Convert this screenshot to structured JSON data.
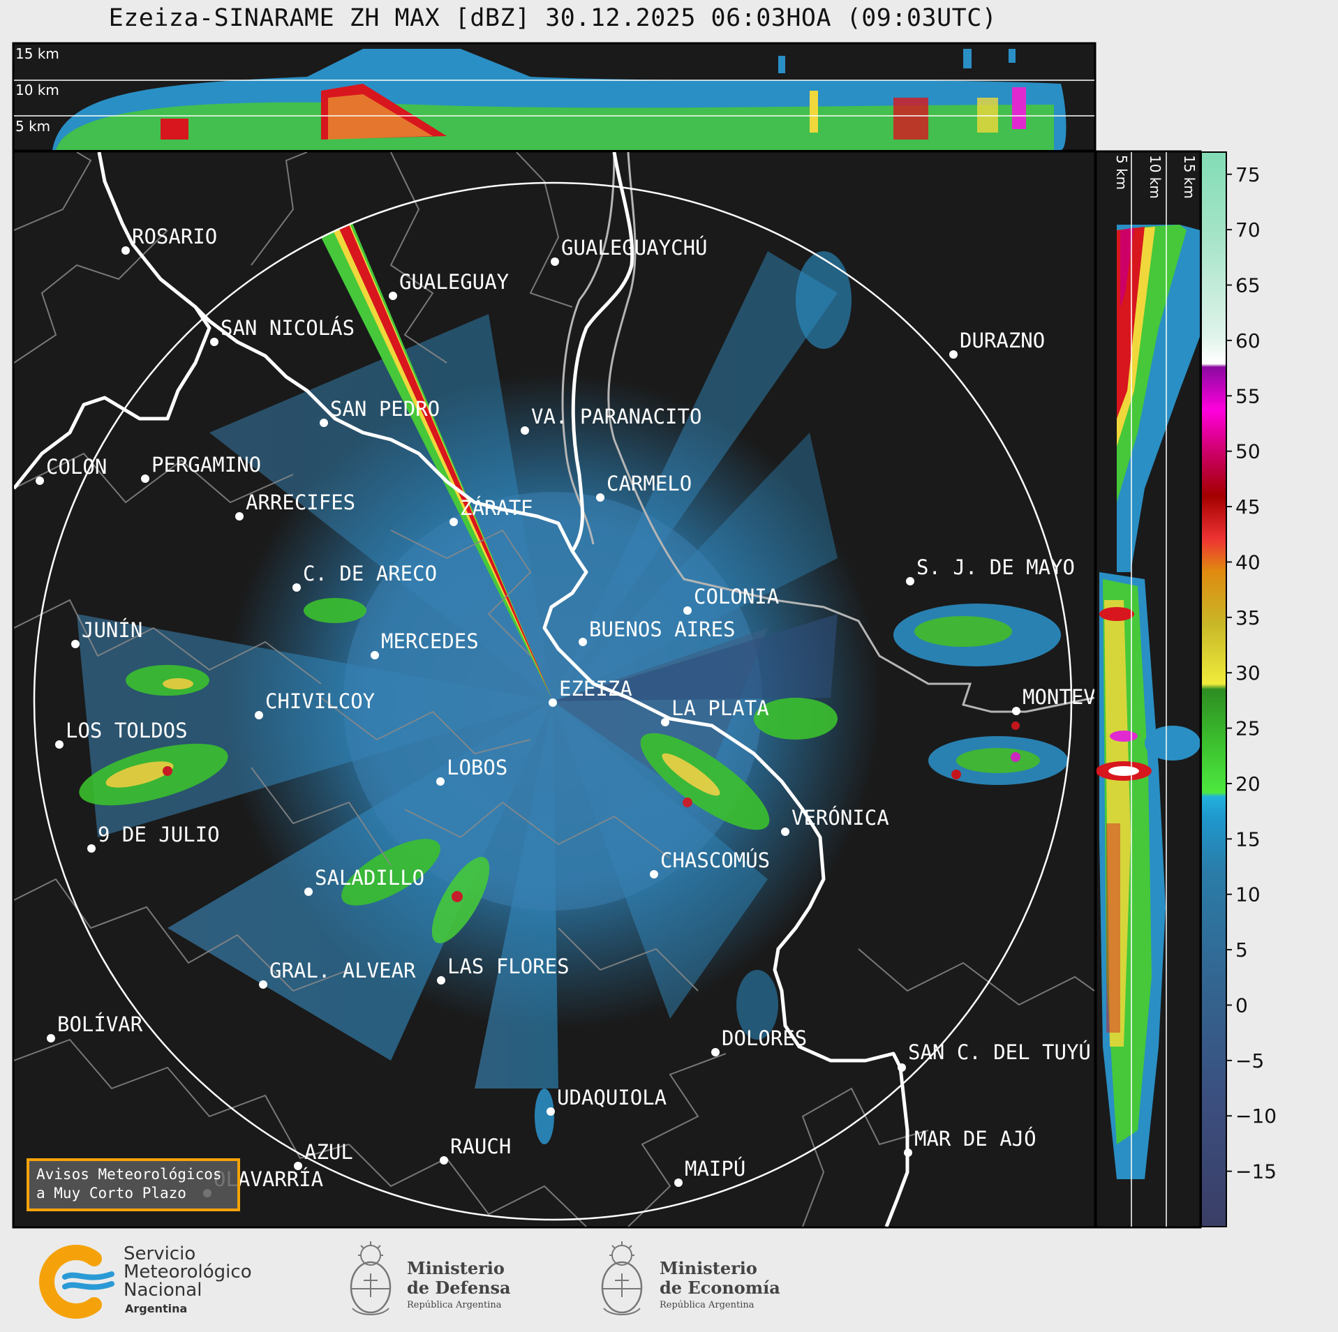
{
  "title": "Ezeiza-SINARAME ZH MAX [dBZ] 30.12.2025 06:03HOA (09:03UTC)",
  "top_panel": {
    "height_labels": [
      "15 km",
      "10 km",
      "5 km"
    ]
  },
  "side_panel": {
    "height_labels": [
      "5 km",
      "10 km",
      "15 km"
    ]
  },
  "colorbar": {
    "ticks": [
      "75",
      "70",
      "65",
      "60",
      "55",
      "50",
      "45",
      "40",
      "35",
      "30",
      "25",
      "20",
      "15",
      "10",
      "5",
      "0",
      "−5",
      "−10",
      "−15"
    ],
    "range": [
      -20,
      77
    ]
  },
  "cities": [
    {
      "name": "ROSARIO"
    },
    {
      "name": "GUALEGUAYCHÚ"
    },
    {
      "name": "GUALEGUAY"
    },
    {
      "name": "SAN NICOLÁS"
    },
    {
      "name": "DURAZNO"
    },
    {
      "name": "SAN PEDRO"
    },
    {
      "name": "VA. PARANACITO"
    },
    {
      "name": "COLON"
    },
    {
      "name": "PERGAMINO"
    },
    {
      "name": "CARMELO"
    },
    {
      "name": "ARRECIFES"
    },
    {
      "name": "ZÁRATE"
    },
    {
      "name": "S. J. DE MAYO"
    },
    {
      "name": "C. DE ARECO"
    },
    {
      "name": "COLONIA"
    },
    {
      "name": "JUNÍN"
    },
    {
      "name": "BUENOS AIRES"
    },
    {
      "name": "MERCEDES"
    },
    {
      "name": "EZEIZA"
    },
    {
      "name": "MONTEV"
    },
    {
      "name": "CHIVILCOY"
    },
    {
      "name": "LA PLATA"
    },
    {
      "name": "LOS TOLDOS"
    },
    {
      "name": "LOBOS"
    },
    {
      "name": "VERÓNICA"
    },
    {
      "name": "9 DE JULIO"
    },
    {
      "name": "CHASCOMÚS"
    },
    {
      "name": "SALADILLO"
    },
    {
      "name": "GRAL. ALVEAR"
    },
    {
      "name": "LAS FLORES"
    },
    {
      "name": "BOLÍVAR"
    },
    {
      "name": "DOLORES"
    },
    {
      "name": "SAN C. DEL TUYÚ"
    },
    {
      "name": "UDAQUIOLA"
    },
    {
      "name": "MAR DE AJÓ"
    },
    {
      "name": "AZUL"
    },
    {
      "name": "RAUCH"
    },
    {
      "name": "OLAVARRÍA"
    },
    {
      "name": "MAIPÚ"
    }
  ],
  "avisos_box": {
    "line1": "Avisos Meteorológicos",
    "line2": "a Muy Corto Plazo"
  },
  "logos": {
    "smn": {
      "line1": "Servicio",
      "line2": "Meteorológico",
      "line3": "Nacional",
      "line4": "Argentina"
    },
    "defensa": {
      "line1": "Ministerio",
      "line2": "de Defensa",
      "line3": "República Argentina"
    },
    "economia": {
      "line1": "Ministerio",
      "line2": "de Economía",
      "line3": "República Argentina"
    }
  },
  "colors": {
    "background": "#1a1a1a",
    "page": "#ebebeb",
    "frame": "#000000",
    "coast": "#ffffff",
    "borders": "#8a8a8a",
    "avisos_border": "#f5a20a"
  }
}
